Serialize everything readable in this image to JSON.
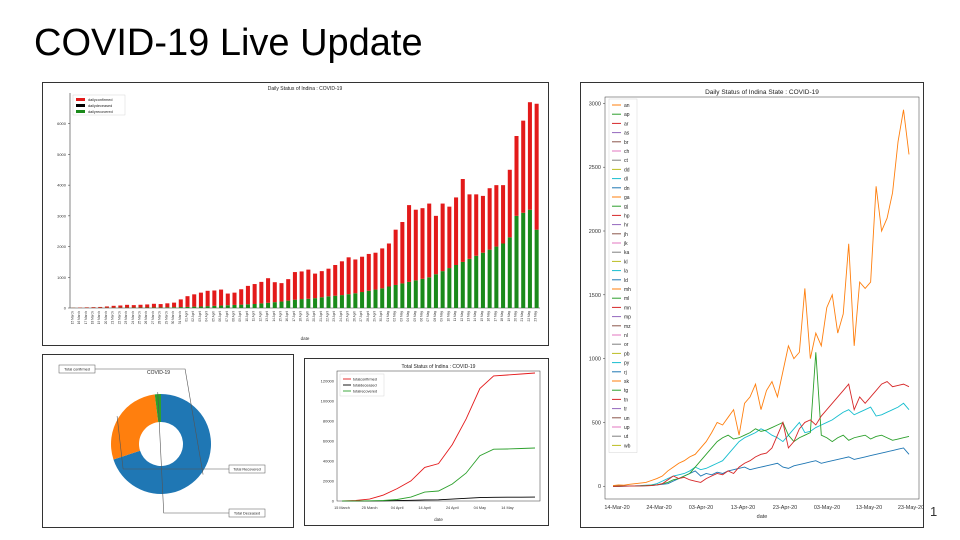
{
  "slide": {
    "title": "COVID-19 Live Update",
    "page_number": "1"
  },
  "chart_data": [
    {
      "type": "bar",
      "stacked": true,
      "title": "Daily Status of Indina : COVID-19",
      "xlabel": "date",
      "ylabel": "",
      "ylim": [
        0,
        7000
      ],
      "yticks": [
        0,
        1000,
        2000,
        3000,
        4000,
        5000,
        6000
      ],
      "legend_position": "top-left",
      "categories": [
        "15 March",
        "16 March",
        "17 March",
        "18 March",
        "19 March",
        "20 March",
        "21 March",
        "22 March",
        "23 March",
        "24 March",
        "25 March",
        "26 March",
        "27 March",
        "28 March",
        "29 March",
        "30 March",
        "31 March",
        "01 April",
        "02 April",
        "03 April",
        "04 April",
        "05 April",
        "06 April",
        "07 April",
        "08 April",
        "09 April",
        "10 April",
        "11 April",
        "12 April",
        "13 April",
        "14 April",
        "15 April",
        "16 April",
        "17 April",
        "18 April",
        "19 April",
        "20 April",
        "21 April",
        "22 April",
        "23 April",
        "24 April",
        "25 April",
        "26 April",
        "27 April",
        "28 April",
        "29 April",
        "30 April",
        "01 May",
        "02 May",
        "03 May",
        "04 May",
        "05 May",
        "06 May",
        "07 May",
        "08 May",
        "09 May",
        "10 May",
        "11 May",
        "12 May",
        "13 May",
        "14 May",
        "15 May",
        "16 May",
        "17 May",
        "18 May",
        "19 May",
        "20 May",
        "21 May",
        "22 May",
        "23 May"
      ],
      "series": [
        {
          "name": "dailyrecovered",
          "color": "#1a8a1a",
          "values": [
            5,
            6,
            7,
            8,
            9,
            10,
            11,
            12,
            13,
            14,
            15,
            16,
            17,
            18,
            22,
            25,
            30,
            35,
            45,
            50,
            60,
            70,
            80,
            90,
            100,
            110,
            120,
            130,
            150,
            170,
            190,
            210,
            240,
            270,
            290,
            300,
            320,
            350,
            380,
            400,
            420,
            450,
            480,
            520,
            560,
            600,
            640,
            700,
            750,
            800,
            850,
            900,
            950,
            1000,
            1100,
            1200,
            1300,
            1400,
            1500,
            1600,
            1700,
            1800,
            1900,
            2000,
            2100,
            2300,
            3000,
            3100,
            3200,
            2550
          ]
        },
        {
          "name": "dailyconfirmed",
          "color": "#e31a1a",
          "values": [
            5,
            10,
            15,
            20,
            25,
            40,
            60,
            70,
            90,
            80,
            90,
            100,
            120,
            110,
            130,
            150,
            250,
            350,
            400,
            450,
            500,
            500,
            520,
            380,
            400,
            500,
            600,
            650,
            700,
            800,
            650,
            600,
            700,
            900,
            900,
            950,
            800,
            850,
            900,
            1000,
            1100,
            1200,
            1100,
            1150,
            1200,
            1200,
            1300,
            1400,
            1800,
            2000,
            2500,
            2300,
            2300,
            2400,
            1900,
            2200,
            2000,
            2200,
            2700,
            2100,
            2000,
            1850,
            2000,
            2000,
            1900,
            2200,
            2600,
            3000,
            3500,
            4100
          ]
        },
        {
          "name": "dailydeceased",
          "color": "#000000",
          "values": [
            0,
            0,
            0,
            0,
            0,
            0,
            1,
            1,
            2,
            2,
            2,
            3,
            3,
            4,
            4,
            5,
            8,
            10,
            12,
            13,
            15,
            18,
            20,
            25,
            25,
            30,
            32,
            34,
            35,
            38,
            40,
            38,
            36,
            40,
            42,
            44,
            46,
            48,
            50,
            52,
            54,
            56,
            58,
            60,
            62,
            64,
            66,
            68,
            70,
            72,
            74,
            76,
            78,
            80,
            82,
            84,
            86,
            88,
            90,
            92,
            94,
            96,
            98,
            100,
            110,
            120,
            130,
            140,
            145,
            150
          ]
        }
      ]
    },
    {
      "type": "pie",
      "donut": true,
      "title": "COVID-19",
      "labels": [
        "Total confirmed",
        "Total Recovered",
        "Total Deceased"
      ],
      "values": [
        70,
        28,
        2
      ],
      "colors": [
        "#1f77b4",
        "#ff7f0e",
        "#2ca02c"
      ]
    },
    {
      "type": "line",
      "title": "Total Status of Indina : COVID-19",
      "xlabel": "date",
      "ylim": [
        0,
        130000
      ],
      "yticks": [
        0,
        20000,
        40000,
        60000,
        80000,
        100000,
        120000
      ],
      "xticks": [
        "15 March",
        "25 March",
        "04 April",
        "14 April",
        "24 April",
        "04 May",
        "14 May"
      ],
      "legend_position": "top-left",
      "x": [
        0,
        5,
        10,
        15,
        20,
        25,
        30,
        35,
        40,
        45,
        50,
        55,
        60,
        65,
        70
      ],
      "series": [
        {
          "name": "totalconfirmed",
          "color": "#e41a1c",
          "values": [
            107,
            519,
            1965,
            5916,
            12380,
            20080,
            33610,
            37336,
            56351,
            81970,
            112442,
            125101,
            126000,
            127000,
            128000
          ]
        },
        {
          "name": "totaldeceased",
          "color": "#000000",
          "values": [
            2,
            10,
            50,
            180,
            420,
            640,
            1100,
            1220,
            1890,
            2650,
            3400,
            3720,
            3800,
            3850,
            3900
          ]
        },
        {
          "name": "totalrecovered",
          "color": "#2ca02c",
          "values": [
            13,
            40,
            150,
            500,
            1500,
            3900,
            8900,
            10000,
            17000,
            27900,
            45300,
            51800,
            52000,
            52500,
            53000
          ]
        }
      ]
    },
    {
      "type": "line",
      "title": "Daily Status of Indina State : COVID-19",
      "xlabel": "date",
      "ylim": [
        -100,
        3050
      ],
      "yticks": [
        0,
        500,
        1000,
        1500,
        2000,
        2500,
        3000
      ],
      "xticks": [
        "14-Mar-20",
        "24-Mar-20",
        "03-Apr-20",
        "13-Apr-20",
        "23-Apr-20",
        "03-May-20",
        "13-May-20",
        "23-May-20"
      ],
      "legend_position": "top-left",
      "legend": [
        {
          "name": "an",
          "color": "#ff7f0e"
        },
        {
          "name": "ap",
          "color": "#2ca02c"
        },
        {
          "name": "ar",
          "color": "#d62728"
        },
        {
          "name": "as",
          "color": "#9467bd"
        },
        {
          "name": "br",
          "color": "#8c564b"
        },
        {
          "name": "ch",
          "color": "#e377c2"
        },
        {
          "name": "ct",
          "color": "#7f7f7f"
        },
        {
          "name": "dd",
          "color": "#bcbd22"
        },
        {
          "name": "dl",
          "color": "#17becf"
        },
        {
          "name": "dn",
          "color": "#1f77b4"
        },
        {
          "name": "ga",
          "color": "#ff7f0e"
        },
        {
          "name": "gj",
          "color": "#2ca02c"
        },
        {
          "name": "hp",
          "color": "#d62728"
        },
        {
          "name": "hr",
          "color": "#9467bd"
        },
        {
          "name": "jh",
          "color": "#8c564b"
        },
        {
          "name": "jk",
          "color": "#e377c2"
        },
        {
          "name": "ka",
          "color": "#7f7f7f"
        },
        {
          "name": "kl",
          "color": "#bcbd22"
        },
        {
          "name": "la",
          "color": "#17becf"
        },
        {
          "name": "ld",
          "color": "#1f77b4"
        },
        {
          "name": "mh",
          "color": "#ff7f0e"
        },
        {
          "name": "ml",
          "color": "#2ca02c"
        },
        {
          "name": "mn",
          "color": "#d62728"
        },
        {
          "name": "mp",
          "color": "#9467bd"
        },
        {
          "name": "mz",
          "color": "#8c564b"
        },
        {
          "name": "nl",
          "color": "#e377c2"
        },
        {
          "name": "or",
          "color": "#7f7f7f"
        },
        {
          "name": "pb",
          "color": "#bcbd22"
        },
        {
          "name": "py",
          "color": "#17becf"
        },
        {
          "name": "rj",
          "color": "#1f77b4"
        },
        {
          "name": "sk",
          "color": "#ff7f0e"
        },
        {
          "name": "tg",
          "color": "#2ca02c"
        },
        {
          "name": "tn",
          "color": "#d62728"
        },
        {
          "name": "tr",
          "color": "#9467bd"
        },
        {
          "name": "un",
          "color": "#8c564b"
        },
        {
          "name": "up",
          "color": "#e377c2"
        },
        {
          "name": "ut",
          "color": "#7f7f7f"
        },
        {
          "name": "wb",
          "color": "#bcbd22"
        }
      ],
      "series": [
        {
          "name": "mh",
          "color": "#ff7f0e",
          "values": [
            5,
            10,
            8,
            15,
            20,
            25,
            30,
            45,
            60,
            80,
            120,
            150,
            180,
            200,
            230,
            250,
            300,
            350,
            420,
            500,
            480,
            540,
            600,
            400,
            650,
            700,
            800,
            600,
            750,
            820,
            700,
            900,
            1100,
            1000,
            1050,
            1550,
            1000,
            1200,
            1100,
            1400,
            1500,
            1200,
            1350,
            1900,
            1100,
            1600,
            1550,
            1600,
            2350,
            2000,
            2100,
            2300,
            2700,
            2950,
            2600
          ]
        },
        {
          "name": "tn",
          "color": "#d62728",
          "values": [
            0,
            0,
            1,
            1,
            2,
            2,
            3,
            5,
            10,
            20,
            50,
            80,
            60,
            70,
            50,
            40,
            30,
            60,
            80,
            100,
            90,
            120,
            100,
            150,
            180,
            200,
            230,
            250,
            260,
            300,
            400,
            500,
            300,
            350,
            450,
            500,
            520,
            480,
            550,
            600,
            650,
            700,
            750,
            800,
            600,
            700,
            650,
            700,
            750,
            800,
            820,
            780,
            790,
            800,
            780
          ]
        },
        {
          "name": "gj",
          "color": "#2ca02c",
          "values": [
            0,
            0,
            1,
            1,
            2,
            3,
            5,
            8,
            10,
            20,
            30,
            50,
            60,
            80,
            100,
            150,
            200,
            250,
            300,
            350,
            380,
            400,
            370,
            380,
            400,
            420,
            450,
            430,
            440,
            460,
            480,
            500,
            400,
            350,
            380,
            400,
            420,
            1050,
            400,
            380,
            350,
            380,
            400,
            360,
            380,
            390,
            400,
            370,
            390,
            400,
            380,
            360,
            370,
            380,
            390
          ]
        },
        {
          "name": "dl",
          "color": "#17becf",
          "values": [
            0,
            0,
            1,
            2,
            3,
            5,
            8,
            10,
            20,
            40,
            60,
            80,
            90,
            100,
            120,
            150,
            130,
            140,
            160,
            180,
            200,
            250,
            300,
            350,
            380,
            400,
            420,
            450,
            430,
            400,
            380,
            350,
            400,
            450,
            500,
            420,
            430,
            460,
            480,
            500,
            520,
            550,
            580,
            600,
            560,
            580,
            600,
            620,
            550,
            560,
            580,
            600,
            620,
            650,
            600
          ]
        },
        {
          "name": "rj",
          "color": "#1f77b4",
          "values": [
            0,
            0,
            0,
            1,
            2,
            3,
            4,
            5,
            10,
            15,
            20,
            40,
            60,
            80,
            100,
            120,
            80,
            100,
            90,
            110,
            100,
            120,
            130,
            140,
            150,
            130,
            140,
            150,
            160,
            170,
            180,
            150,
            140,
            160,
            170,
            180,
            190,
            200,
            180,
            190,
            200,
            210,
            220,
            230,
            210,
            220,
            230,
            240,
            250,
            260,
            270,
            280,
            290,
            300,
            250
          ]
        }
      ]
    }
  ]
}
